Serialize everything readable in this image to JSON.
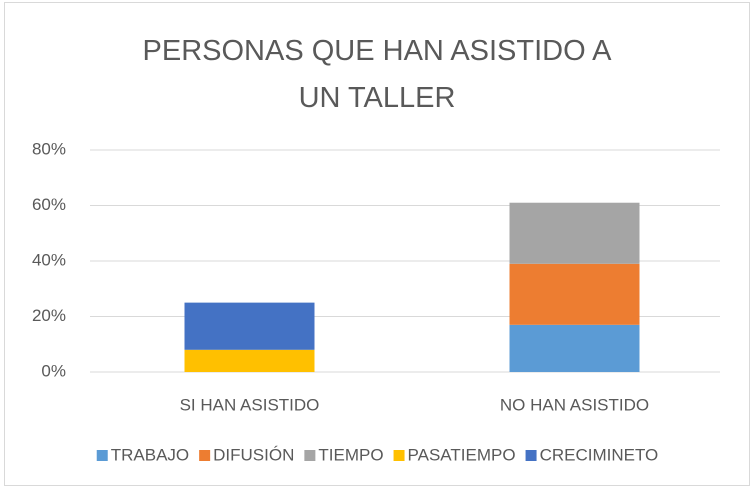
{
  "chart_data": {
    "type": "stacked_bar",
    "title": "PERSONAS QUE HAN ASISTIDO A UN TALLER",
    "categories": [
      "SI HAN ASISTIDO",
      "NO HAN ASISTIDO"
    ],
    "series": [
      {
        "name": "TRABAJO",
        "color": "#5b9bd5",
        "values": [
          0,
          17
        ]
      },
      {
        "name": "DIFUSIÓN",
        "color": "#ed7d31",
        "values": [
          0,
          22
        ]
      },
      {
        "name": "TIEMPO",
        "color": "#a5a5a5",
        "values": [
          0,
          22
        ]
      },
      {
        "name": "PASATIEMPO",
        "color": "#ffc000",
        "values": [
          8,
          0
        ]
      },
      {
        "name": "CRECIMINETO",
        "color": "#4472c4",
        "values": [
          17,
          0
        ]
      }
    ],
    "ylim": [
      0,
      80
    ],
    "yticks": [
      {
        "value": 0,
        "label": "0%"
      },
      {
        "value": 20,
        "label": "20%"
      },
      {
        "value": 40,
        "label": "40%"
      },
      {
        "value": 60,
        "label": "60%"
      },
      {
        "value": 80,
        "label": "80%"
      }
    ],
    "grid": true,
    "legend": "bottom"
  }
}
